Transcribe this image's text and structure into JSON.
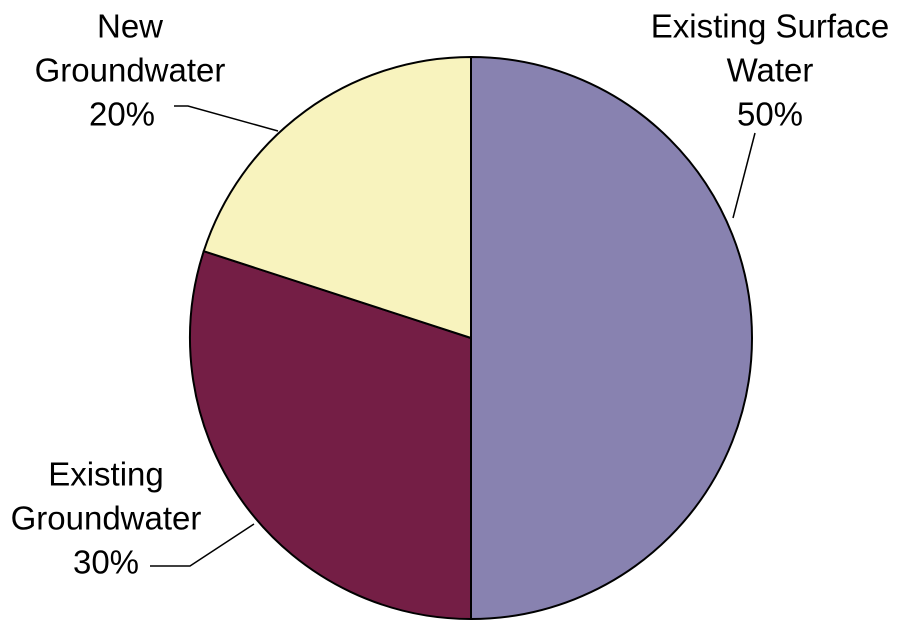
{
  "chart_data": {
    "type": "pie",
    "title": "",
    "start_angle_deg": 0,
    "direction": "clockwise",
    "slices": [
      {
        "name": "Existing Surface Water",
        "value": 50,
        "label_lines": [
          "Existing Surface",
          "Water",
          "50%"
        ],
        "color": "#8882B0"
      },
      {
        "name": "Existing Groundwater",
        "value": 30,
        "label_lines": [
          "Existing",
          "Groundwater",
          "30%"
        ],
        "color": "#741E45"
      },
      {
        "name": "New Groundwater",
        "value": 20,
        "label_lines": [
          "New",
          "Groundwater",
          "20%"
        ],
        "color": "#F8F3BE"
      }
    ],
    "legend": "none"
  }
}
